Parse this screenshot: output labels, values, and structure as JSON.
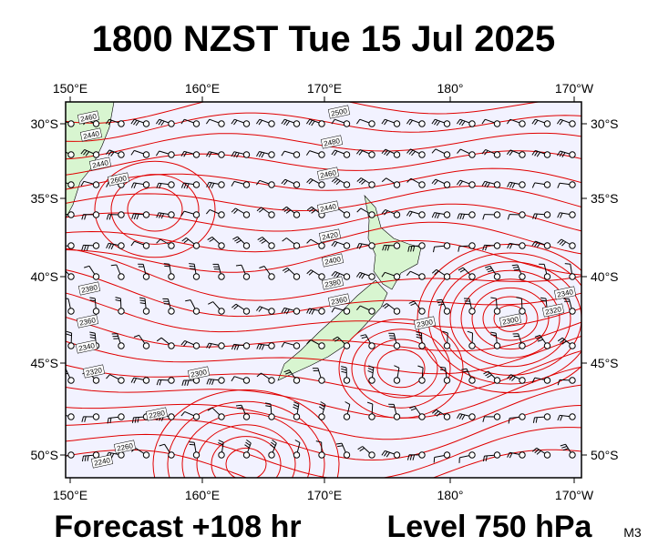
{
  "title": "1800 NZST Tue 15 Jul 2025",
  "lon_labels": [
    "150°E",
    "160°E",
    "170°E",
    "180°",
    "170°W"
  ],
  "lat_labels": [
    "30°S",
    "35°S",
    "40°S",
    "45°S",
    "50°S"
  ],
  "contour_labels": [
    "2460",
    "2440",
    "2500",
    "2480",
    "2460",
    "2440",
    "2420",
    "2400",
    "2380",
    "2360",
    "2340",
    "2320",
    "2300",
    "2300",
    "2600",
    "2440",
    "2380",
    "2360",
    "2340",
    "2320",
    "2300",
    "2280",
    "2260",
    "2240"
  ],
  "footer": {
    "forecast": "Forecast +108 hr",
    "level": "Level 750 hPa",
    "model": "M3"
  }
}
